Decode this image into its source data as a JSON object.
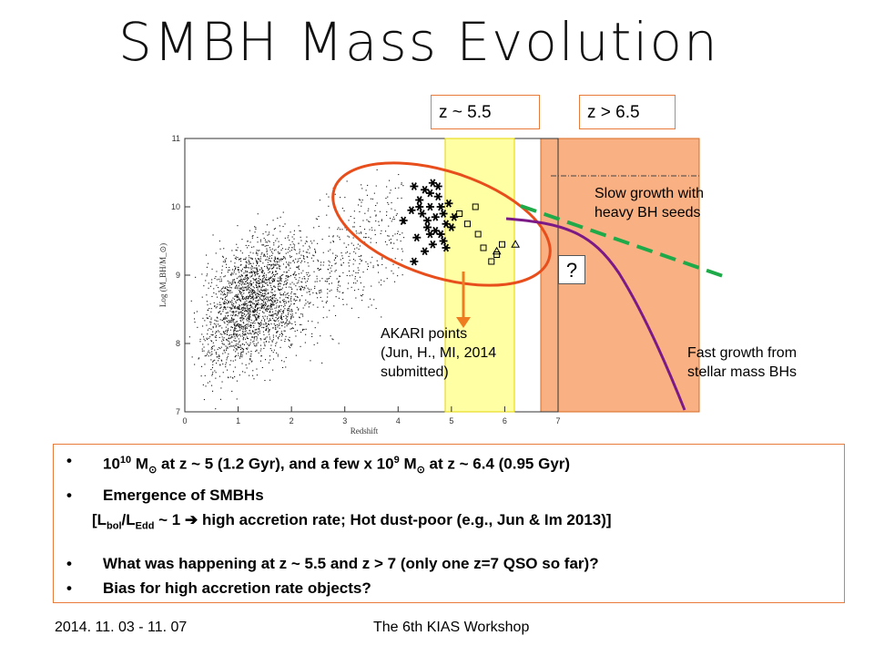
{
  "title": "SMBH Mass Evolution",
  "zbox_left": "z ~ 5.5",
  "zbox_right": "z > 6.5",
  "chart_data": {
    "type": "scatter",
    "xlabel": "Redshift",
    "ylabel": "Log (M_BH/M_⊙)",
    "xlim": [
      0,
      7
    ],
    "ylim": [
      7.0,
      11.0
    ],
    "xticks": [
      "0",
      "1",
      "2",
      "3",
      "4",
      "5",
      "6",
      "7"
    ],
    "yticks": [
      "7",
      "8",
      "9",
      "10",
      "11"
    ],
    "series": [
      {
        "marker": "asterisk",
        "x": [
          4.1,
          4.25,
          4.3,
          4.4,
          4.5,
          4.55,
          4.6,
          4.65,
          4.7,
          4.75,
          4.8,
          4.85,
          4.9,
          4.95,
          4.35,
          4.45,
          4.6,
          4.7,
          4.8,
          4.5,
          4.65,
          4.85,
          5.0,
          4.4,
          4.55,
          4.75,
          4.9,
          4.3,
          4.6,
          5.05
        ],
        "y": [
          9.8,
          9.95,
          10.3,
          10.1,
          10.25,
          9.7,
          10.0,
          10.35,
          9.85,
          10.15,
          9.6,
          9.9,
          9.75,
          10.05,
          9.55,
          9.9,
          10.2,
          9.65,
          10.0,
          9.35,
          9.45,
          9.5,
          9.7,
          10.0,
          9.8,
          10.3,
          9.4,
          9.2,
          9.6,
          9.85
        ]
      },
      {
        "marker": "square",
        "x": [
          5.15,
          5.3,
          5.45,
          5.6,
          5.75,
          5.85,
          5.95,
          5.5
        ],
        "y": [
          9.9,
          9.75,
          10.0,
          9.4,
          9.2,
          9.3,
          9.45,
          9.6
        ]
      },
      {
        "marker": "triangle",
        "x": [
          5.85,
          6.2
        ],
        "y": [
          9.35,
          9.45
        ]
      }
    ]
  },
  "annotations": {
    "slow_line1": "Slow growth with",
    "slow_line2": "heavy BH seeds",
    "fast_line1": "Fast growth from",
    "fast_line2": "stellar mass BHs",
    "akari_line1": "AKARI points",
    "akari_line2": "(Jun, H., MI, 2014",
    "akari_line3": "submitted)",
    "question": "?"
  },
  "bullets": {
    "b1": [
      "10",
      "10",
      " M",
      "⊙",
      " at z ~ 5 (1.2 Gyr), and a few x 10",
      "9",
      " M",
      "⊙",
      " at z ~ 6.4  (0.95 Gyr)"
    ],
    "b2": "Emergence of SMBHs",
    "b2_sub": [
      "[L",
      "bol",
      "/L",
      "Edd",
      " ~ 1 ",
      "➔",
      " high accretion rate; Hot dust-poor (e.g., Jun & Im 2013)]"
    ],
    "b3": "What was happening at z ~ 5.5 and z > 7 (only one z=7 QSO so far)?",
    "b4": "Bias for high accretion rate objects?",
    "bullet_char": "•"
  },
  "footer": {
    "date": "2014. 11. 03 - 11. 07",
    "workshop": "The 6th KIAS Workshop"
  },
  "colors": {
    "orange_region": "#f9b083",
    "yellow_band": "#ffff66",
    "ellipse": "#e84e1c",
    "purple_curve": "#7b1a86",
    "green_dash": "#1faa4a",
    "arrow": "#ee7d22"
  }
}
